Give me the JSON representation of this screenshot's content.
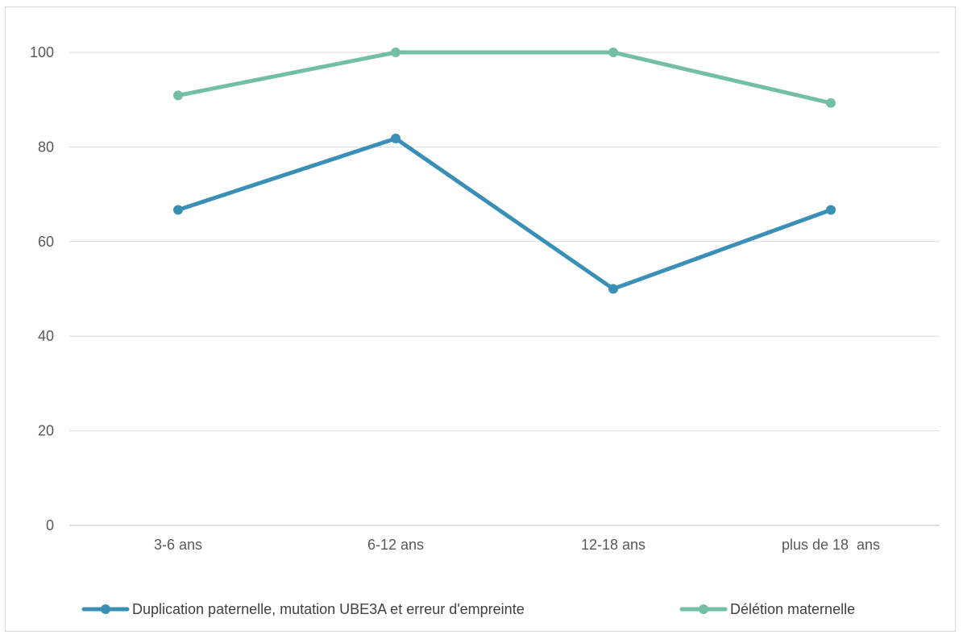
{
  "chart_data": {
    "type": "line",
    "title": "",
    "xlabel": "",
    "ylabel": "",
    "categories": [
      "3-6 ans",
      "6-12 ans",
      "12-18 ans",
      "plus de 18  ans"
    ],
    "ylim": [
      0,
      100
    ],
    "yticks": [
      0,
      20,
      40,
      60,
      80,
      100
    ],
    "grid": true,
    "legend_position": "bottom",
    "series": [
      {
        "name": "Duplication paternelle, mutation UBE3A et erreur d'empreinte",
        "color": "#3a8fb7",
        "values": [
          66.7,
          81.8,
          50,
          66.7
        ]
      },
      {
        "name": "Délétion maternelle",
        "color": "#72bfa3",
        "values": [
          90.9,
          100,
          100,
          89.3
        ]
      }
    ]
  }
}
